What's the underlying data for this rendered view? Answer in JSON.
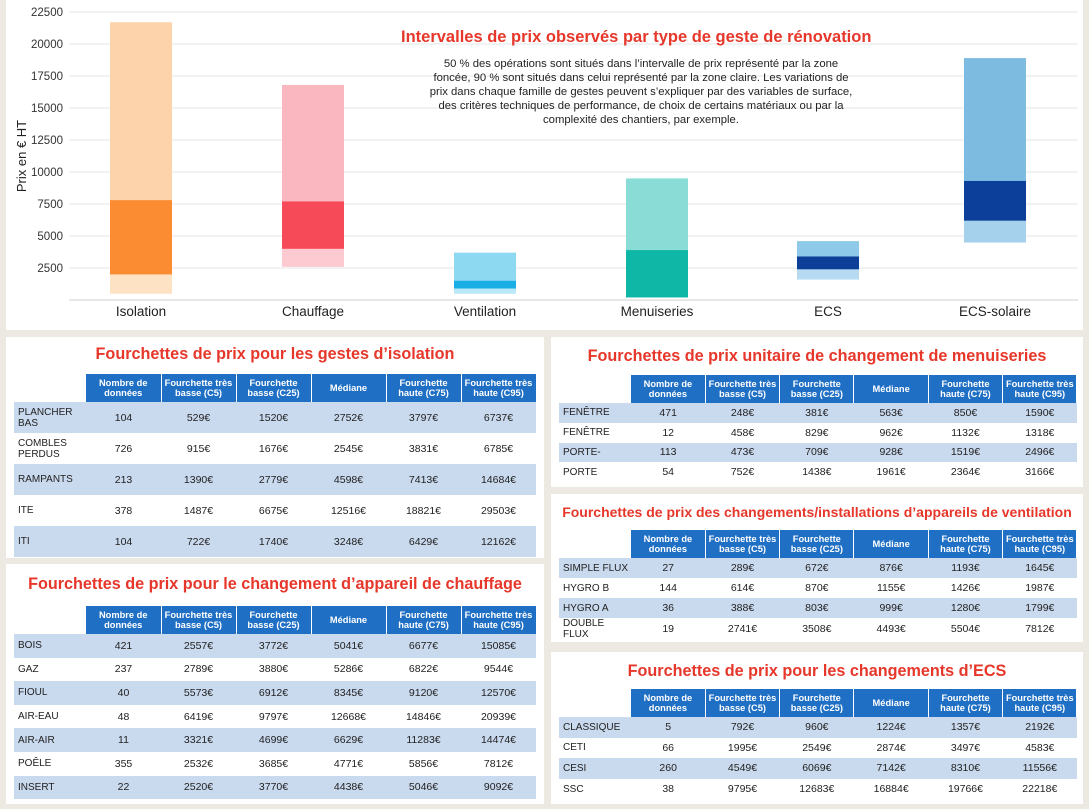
{
  "chart_data": {
    "type": "range_bar",
    "title": "Intervalles de prix observés par type de geste de rénovation",
    "note": "50 % des opérations sont situés dans l’intervalle de prix représenté par la zone foncée, 90 % sont situés dans celui représenté par la zone claire. Les variations de prix dans chaque famille de gestes peuvent s’expliquer par des variables de surface, des critères techniques de performance, de choix de certains matériaux ou par la complexité des chantiers, par exemple.",
    "ylabel": "Prix en € HT",
    "ylim": [
      0,
      22500
    ],
    "yticks": [
      2500,
      5000,
      7500,
      10000,
      12500,
      15000,
      17500,
      20000,
      22500
    ],
    "grid": true,
    "categories": [
      "Isolation",
      "Chauffage",
      "Ventilation",
      "Menuiseries",
      "ECS",
      "ECS-solaire"
    ],
    "light_ranges": [
      [
        500,
        21700
      ],
      [
        2600,
        16800
      ],
      [
        500,
        3700
      ],
      [
        200,
        9500
      ],
      [
        1600,
        4600
      ],
      [
        4500,
        18900
      ]
    ],
    "dark_ranges": [
      [
        2000,
        7800
      ],
      [
        4000,
        7700
      ],
      [
        900,
        1500
      ],
      [
        200,
        3900
      ],
      [
        2400,
        3400
      ],
      [
        6200,
        9300
      ]
    ],
    "colors_light": [
      "#fcd3ab",
      "#fbb7c0",
      "#8ed9f2",
      "#8adcd6",
      "#8fc9ea",
      "#7dbbe0"
    ],
    "colors_mid": [
      "#fde2c4",
      "#fccad0",
      "#b9e8f8",
      "#b6eae6",
      "#b5daf1",
      "#a6d1ec"
    ],
    "colors_dark": [
      "#fb8c31",
      "#f74a58",
      "#1aaee6",
      "#0fb7a6",
      "#0e3f98",
      "#0b3f9a"
    ]
  },
  "tables": [
    {
      "title": "Fourchettes de prix pour les gestes d’isolation",
      "headers": [
        "Nombre de données",
        "Fourchette très basse (C5)",
        "Fourchette basse (C25)",
        "Médiane",
        "Fourchette haute (C75)",
        "Fourchette très haute (C95)"
      ],
      "rows": [
        [
          "PLANCHER BAS",
          "104",
          "529€",
          "1520€",
          "2752€",
          "3797€",
          "6737€"
        ],
        [
          "COMBLES PERDUS",
          "726",
          "915€",
          "1676€",
          "2545€",
          "3831€",
          "6785€"
        ],
        [
          "RAMPANTS",
          "213",
          "1390€",
          "2779€",
          "4598€",
          "7413€",
          "14684€"
        ],
        [
          "ITE",
          "378",
          "1487€",
          "6675€",
          "12516€",
          "18821€",
          "29503€"
        ],
        [
          "ITI",
          "104",
          "722€",
          "1740€",
          "3248€",
          "6429€",
          "12162€"
        ]
      ]
    },
    {
      "title": "Fourchettes de prix pour le changement d’appareil de chauffage",
      "headers": [
        "Nombre de données",
        "Fourchette très basse (C5)",
        "Fourchette basse (C25)",
        "Médiane",
        "Fourchette haute (C75)",
        "Fourchette très haute (C95)"
      ],
      "rows": [
        [
          "BOIS",
          "421",
          "2557€",
          "3772€",
          "5041€",
          "6677€",
          "15085€"
        ],
        [
          "GAZ",
          "237",
          "2789€",
          "3880€",
          "5286€",
          "6822€",
          "9544€"
        ],
        [
          "FIOUL",
          "40",
          "5573€",
          "6912€",
          "8345€",
          "9120€",
          "12570€"
        ],
        [
          "AIR-EAU",
          "48",
          "6419€",
          "9797€",
          "12668€",
          "14846€",
          "20939€"
        ],
        [
          "AIR-AIR",
          "11",
          "3321€",
          "4699€",
          "6629€",
          "11283€",
          "14474€"
        ],
        [
          "POÊLE",
          "355",
          "2532€",
          "3685€",
          "4771€",
          "5856€",
          "7812€"
        ],
        [
          "INSERT",
          "22",
          "2520€",
          "3770€",
          "4438€",
          "5046€",
          "9092€"
        ]
      ]
    },
    {
      "title": "Fourchettes de prix unitaire de changement de menuiseries",
      "headers": [
        "Nombre de données",
        "Fourchette très basse (C5)",
        "Fourchette basse (C25)",
        "Médiane",
        "Fourchette haute (C75)",
        "Fourchette très haute (C95)"
      ],
      "rows": [
        [
          "FENÊTRE",
          "471",
          "248€",
          "381€",
          "563€",
          "850€",
          "1590€"
        ],
        [
          "FENÊTRE",
          "12",
          "458€",
          "829€",
          "962€",
          "1132€",
          "1318€"
        ],
        [
          "PORTE-",
          "113",
          "473€",
          "709€",
          "928€",
          "1519€",
          "2496€"
        ],
        [
          "PORTE",
          "54",
          "752€",
          "1438€",
          "1961€",
          "2364€",
          "3166€"
        ]
      ]
    },
    {
      "title": "Fourchettes de prix des changements/installations d’appareils de ventilation",
      "headers": [
        "Nombre de données",
        "Fourchette très basse (C5)",
        "Fourchette basse (C25)",
        "Médiane",
        "Fourchette haute (C75)",
        "Fourchette très haute (C95)"
      ],
      "rows": [
        [
          "SIMPLE FLUX",
          "27",
          "289€",
          "672€",
          "876€",
          "1193€",
          "1645€"
        ],
        [
          "HYGRO B",
          "144",
          "614€",
          "870€",
          "1155€",
          "1426€",
          "1987€"
        ],
        [
          "HYGRO A",
          "36",
          "388€",
          "803€",
          "999€",
          "1280€",
          "1799€"
        ],
        [
          "DOUBLE FLUX",
          "19",
          "2741€",
          "3508€",
          "4493€",
          "5504€",
          "7812€"
        ]
      ]
    },
    {
      "title": "Fourchettes de prix pour les changements d’ECS",
      "headers": [
        "Nombre de données",
        "Fourchette très basse (C5)",
        "Fourchette basse (C25)",
        "Médiane",
        "Fourchette haute (C75)",
        "Fourchette très haute (C95)"
      ],
      "rows": [
        [
          "CLASSIQUE",
          "5",
          "792€",
          "960€",
          "1224€",
          "1357€",
          "2192€"
        ],
        [
          "CETI",
          "66",
          "1995€",
          "2549€",
          "2874€",
          "3497€",
          "4583€"
        ],
        [
          "CESI",
          "260",
          "4549€",
          "6069€",
          "7142€",
          "8310€",
          "11556€"
        ],
        [
          "SSC",
          "38",
          "9795€",
          "12683€",
          "16884€",
          "19766€",
          "22218€"
        ]
      ]
    }
  ]
}
